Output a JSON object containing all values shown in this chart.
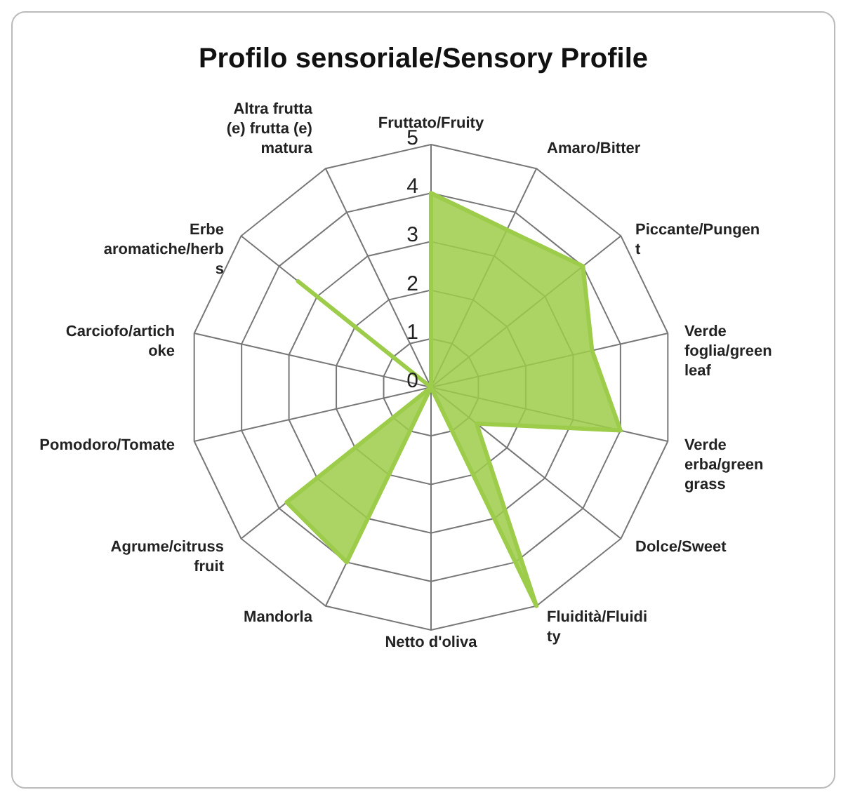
{
  "chart_data": {
    "type": "radar",
    "title": "Profilo sensoriale/Sensory Profile",
    "categories": [
      "Fruttato/Fruity",
      "Amaro/Bitter",
      "Piccante/Pungent",
      "Verde foglia/green leaf",
      "Verde erba/green grass",
      "Dolce/Sweet",
      "Fluidità/Fluidity",
      "Netto d'oliva",
      "Mandorla",
      "Agrume/citruss fruit",
      "Pomodoro/Tomate",
      "Carciofo/artichoke",
      "Erbe aromatiche/herbs",
      "Altra frutta (e) frutta (e) matura"
    ],
    "series": [
      {
        "color": "#9ccc4a",
        "values": [
          4,
          3.6,
          4,
          3.4,
          4,
          1.2,
          5,
          0,
          4,
          3.8,
          0,
          0,
          3.5,
          0
        ]
      }
    ],
    "ylim": [
      0,
      5
    ],
    "yticks": [
      0,
      1,
      2,
      3,
      4,
      5
    ],
    "grid": true
  }
}
